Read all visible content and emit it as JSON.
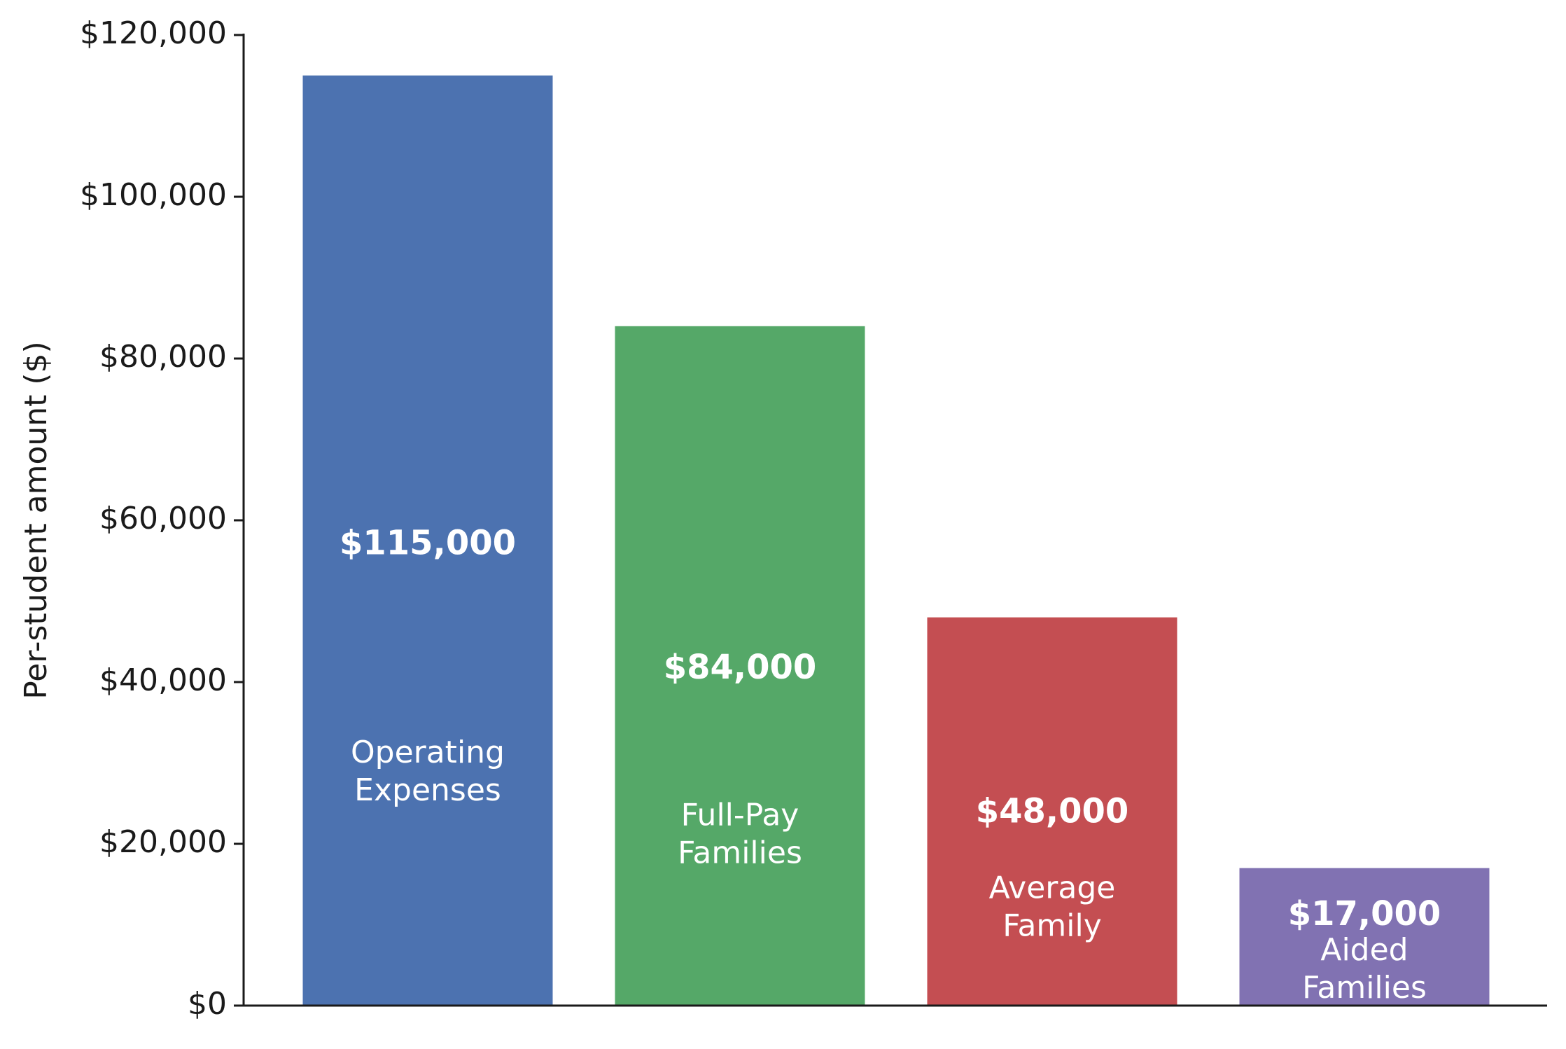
{
  "chart_data": {
    "type": "bar",
    "title": "",
    "xlabel": "",
    "ylabel": "Per-student amount ($)",
    "ylim": [
      0,
      120000
    ],
    "yticks": [
      0,
      20000,
      40000,
      60000,
      80000,
      100000,
      120000
    ],
    "ytick_labels": [
      "$0",
      "$20,000",
      "$40,000",
      "$60,000",
      "$80,000",
      "$100,000",
      "$120,000"
    ],
    "grid": false,
    "legend": "none",
    "categories": [
      "Operating Expenses",
      "Full-Pay Families",
      "Average Family",
      "Aided Families"
    ],
    "category_labels": [
      [
        "Operating",
        "Expenses"
      ],
      [
        "Full-Pay",
        "Families"
      ],
      [
        "Average",
        "Family"
      ],
      [
        "Aided",
        "Families"
      ]
    ],
    "values": [
      115000,
      84000,
      48000,
      17000
    ],
    "value_labels": [
      "$115,000",
      "$84,000",
      "$48,000",
      "$17,000"
    ],
    "colors": [
      "#4c72b0",
      "#55a868",
      "#c44e52",
      "#8172b2"
    ]
  }
}
